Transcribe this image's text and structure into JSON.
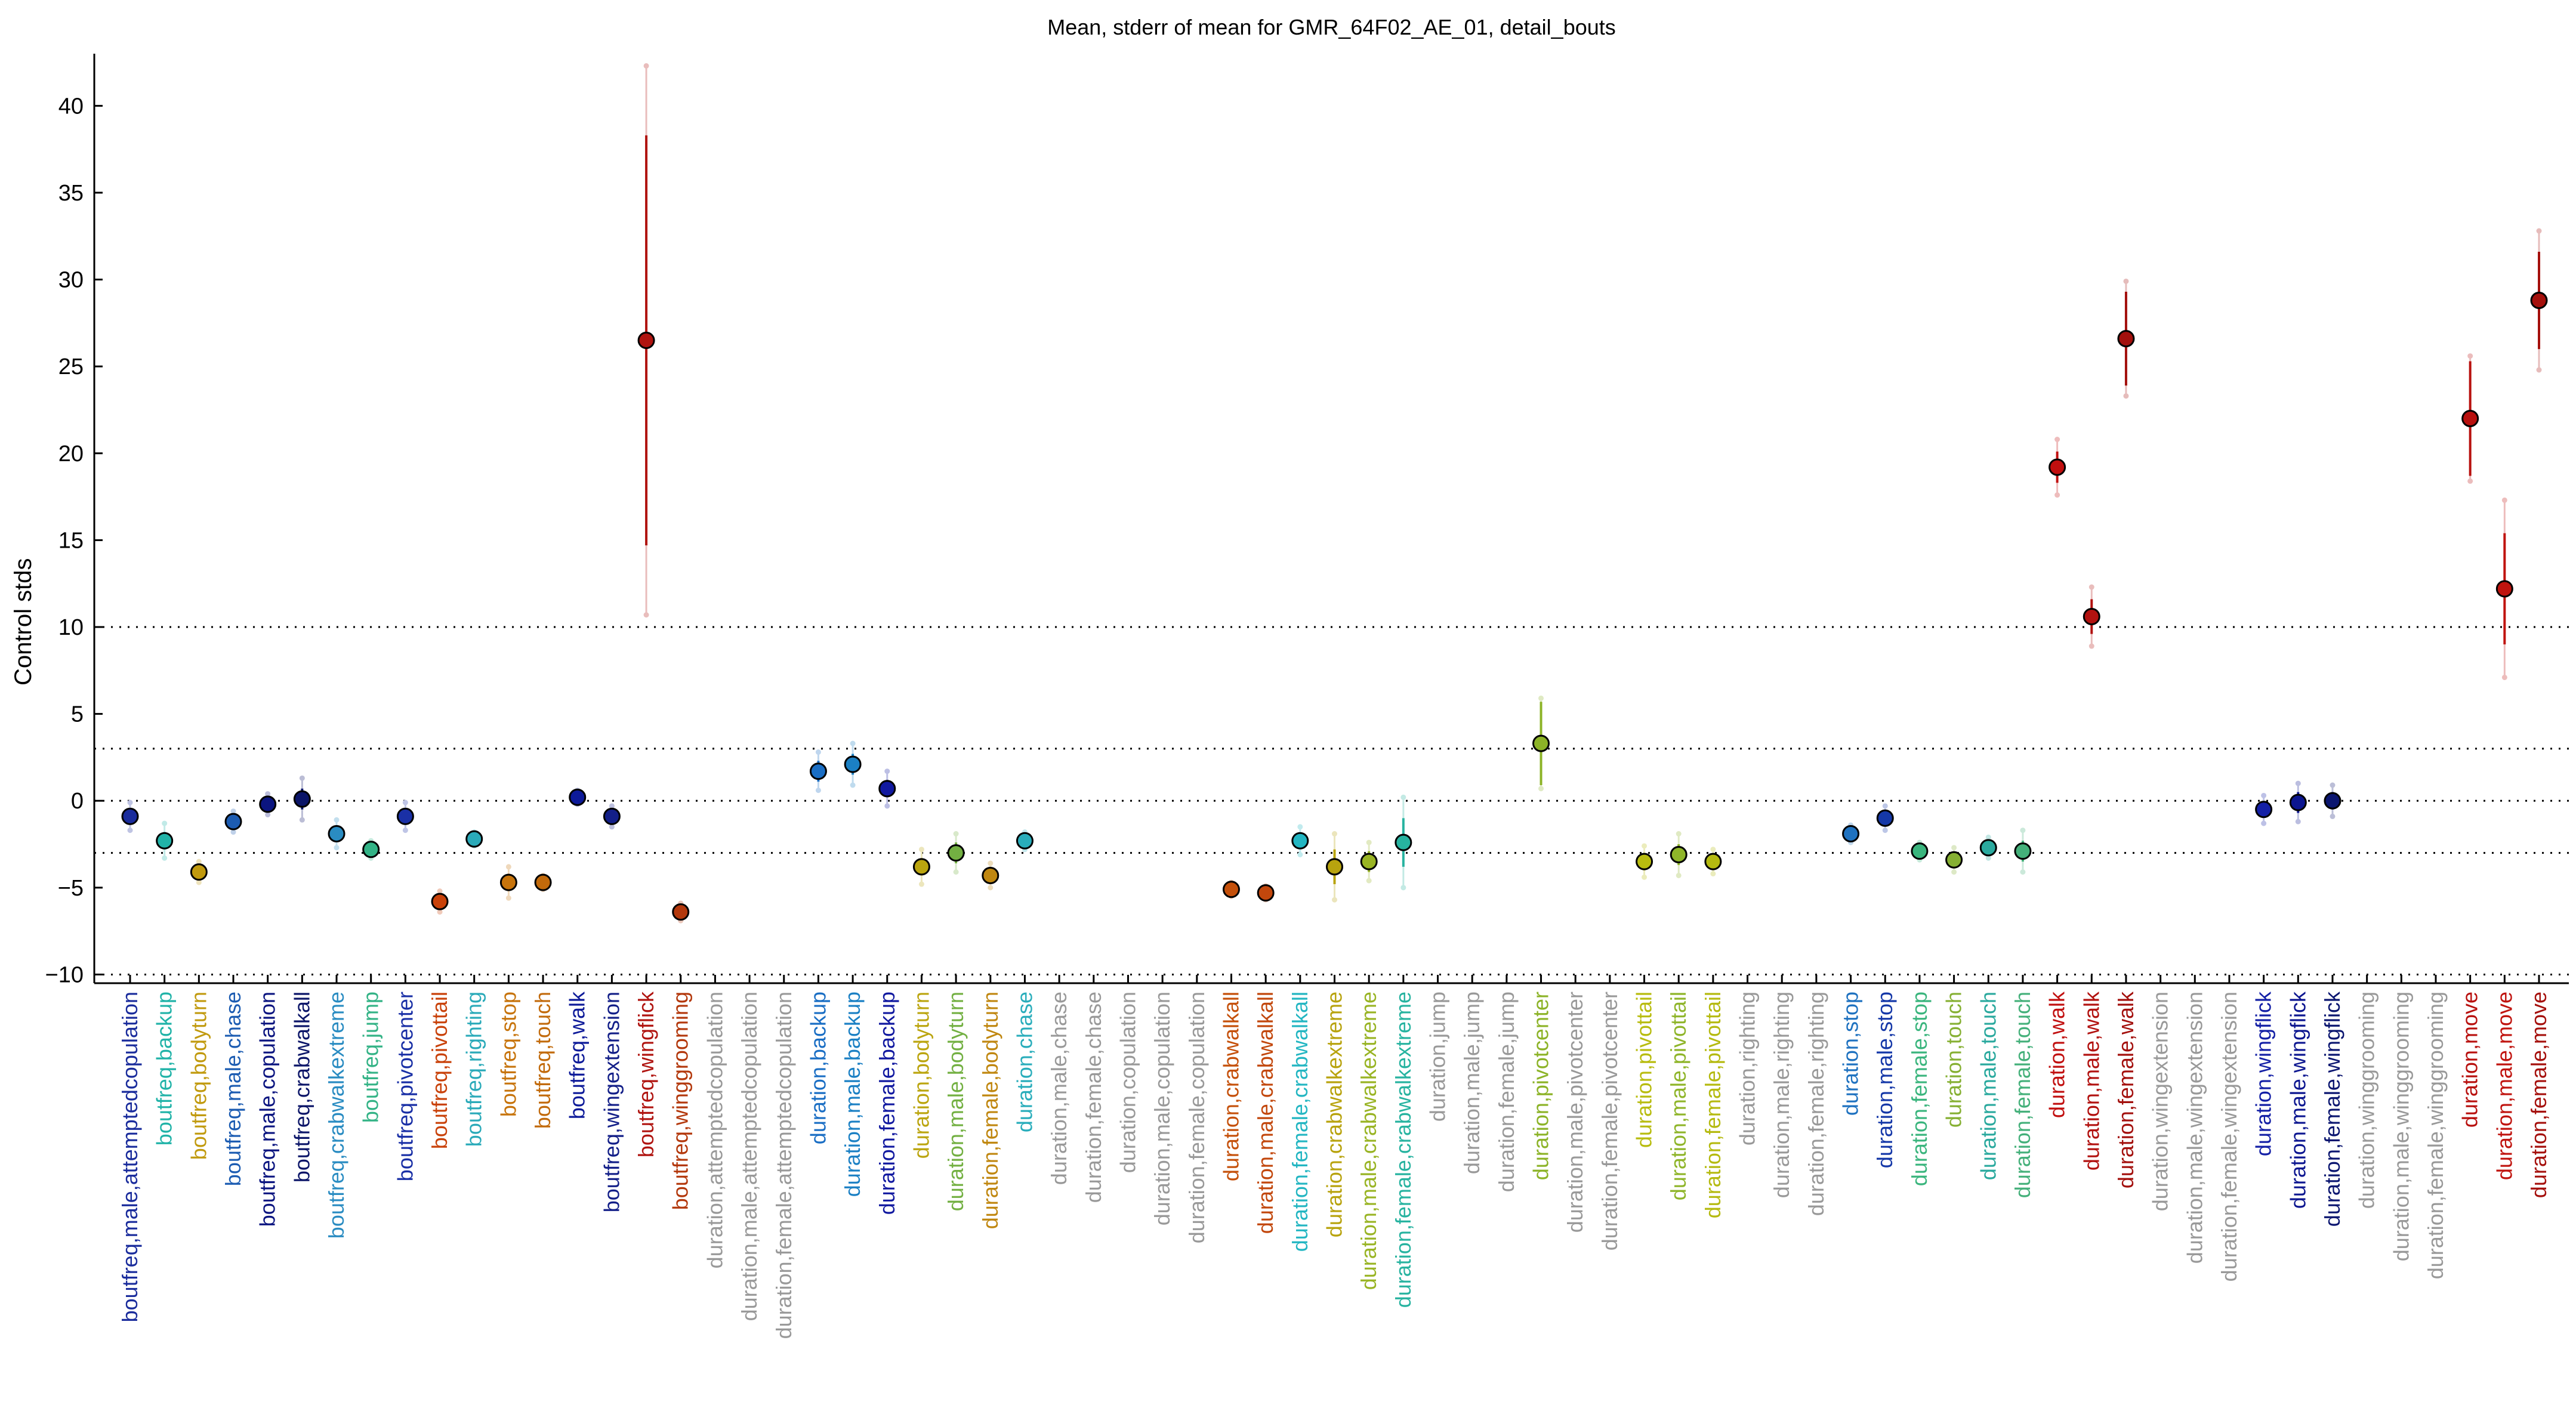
{
  "chart_data": {
    "type": "scatter",
    "title": "Mean, stderr of mean for GMR_64F02_AE_01, detail_bouts",
    "xlabel": "",
    "ylabel": "Control stds",
    "ylim": [
      -10.5,
      43
    ],
    "yticks": [
      -10,
      -5,
      0,
      5,
      10,
      15,
      20,
      25,
      30,
      35,
      40
    ],
    "reference_lines": [
      -10,
      -3,
      0,
      3,
      10
    ],
    "grid": false,
    "legend": "none",
    "points": [
      {
        "label": "boutfreq,male,attemptedcopulation",
        "y": -0.9,
        "se": 0.4,
        "ci": 0.8,
        "color": "#1a2c9c"
      },
      {
        "label": "boutfreq,backup",
        "y": -2.3,
        "se": 0.5,
        "ci": 1.0,
        "color": "#21b3a8"
      },
      {
        "label": "boutfreq,bodyturn",
        "y": -4.1,
        "se": 0.3,
        "ci": 0.6,
        "color": "#c19a0e"
      },
      {
        "label": "boutfreq,male,chase",
        "y": -1.2,
        "se": 0.3,
        "ci": 0.6,
        "color": "#1c5cb2"
      },
      {
        "label": "boutfreq,male,copulation",
        "y": -0.2,
        "se": 0.3,
        "ci": 0.6,
        "color": "#0b1580"
      },
      {
        "label": "boutfreq,crabwalkall",
        "y": 0.1,
        "se": 0.6,
        "ci": 1.2,
        "color": "#0b1568"
      },
      {
        "label": "boutfreq,crabwalkextreme",
        "y": -1.9,
        "se": 0.4,
        "ci": 0.8,
        "color": "#2a8cc2"
      },
      {
        "label": "boutfreq,jump",
        "y": -2.8,
        "se": 0.3,
        "ci": 0.5,
        "color": "#33b386"
      },
      {
        "label": "boutfreq,pivotcenter",
        "y": -0.9,
        "se": 0.4,
        "ci": 0.8,
        "color": "#1a30a6"
      },
      {
        "label": "boutfreq,pivottail",
        "y": -5.8,
        "se": 0.3,
        "ci": 0.6,
        "color": "#c9420a"
      },
      {
        "label": "boutfreq,righting",
        "y": -2.2,
        "se": 0.2,
        "ci": 0.4,
        "color": "#2aaab9"
      },
      {
        "label": "boutfreq,stop",
        "y": -4.7,
        "se": 0.5,
        "ci": 0.9,
        "color": "#c7740c"
      },
      {
        "label": "boutfreq,touch",
        "y": -4.7,
        "se": 0.2,
        "ci": 0.4,
        "color": "#c26a0b"
      },
      {
        "label": "boutfreq,walk",
        "y": 0.2,
        "se": 0.2,
        "ci": 0.4,
        "color": "#0d1a99"
      },
      {
        "label": "boutfreq,wingextension",
        "y": -0.9,
        "se": 0.3,
        "ci": 0.6,
        "color": "#131f88"
      },
      {
        "label": "boutfreq,wingflick",
        "y": 26.5,
        "se": 11.8,
        "ci": 15.8,
        "color": "#b01410"
      },
      {
        "label": "boutfreq,winggrooming",
        "y": -6.4,
        "se": 0.3,
        "ci": 0.5,
        "color": "#b3380c"
      },
      {
        "label": "duration,attemptedcopulation",
        "y": null,
        "color": "#999999"
      },
      {
        "label": "duration,male,attemptedcopulation",
        "y": null,
        "color": "#999999"
      },
      {
        "label": "duration,female,attemptedcopulation",
        "y": null,
        "color": "#999999"
      },
      {
        "label": "duration,backup",
        "y": 1.7,
        "se": 0.6,
        "ci": 1.1,
        "color": "#1a6ec4"
      },
      {
        "label": "duration,male,backup",
        "y": 2.1,
        "se": 0.6,
        "ci": 1.2,
        "color": "#1b80c4"
      },
      {
        "label": "duration,female,backup",
        "y": 0.7,
        "se": 0.5,
        "ci": 1.0,
        "color": "#1119a0"
      },
      {
        "label": "duration,bodyturn",
        "y": -3.8,
        "se": 0.5,
        "ci": 1.0,
        "color": "#bba50f"
      },
      {
        "label": "duration,male,bodyturn",
        "y": -3.0,
        "se": 0.6,
        "ci": 1.1,
        "color": "#73b042"
      },
      {
        "label": "duration,female,bodyturn",
        "y": -4.3,
        "se": 0.4,
        "ci": 0.7,
        "color": "#c08710"
      },
      {
        "label": "duration,chase",
        "y": -2.3,
        "se": 0.3,
        "ci": 0.5,
        "color": "#29adbb"
      },
      {
        "label": "duration,male,chase",
        "y": null,
        "color": "#999999"
      },
      {
        "label": "duration,female,chase",
        "y": null,
        "color": "#999999"
      },
      {
        "label": "duration,copulation",
        "y": null,
        "color": "#999999"
      },
      {
        "label": "duration,male,copulation",
        "y": null,
        "color": "#999999"
      },
      {
        "label": "duration,female,copulation",
        "y": null,
        "color": "#999999"
      },
      {
        "label": "duration,crabwalkall",
        "y": -5.1,
        "se": 0.2,
        "ci": 0.4,
        "color": "#c5500a"
      },
      {
        "label": "duration,male,crabwalkall",
        "y": -5.3,
        "se": 0.2,
        "ci": 0.4,
        "color": "#c2470c"
      },
      {
        "label": "duration,female,crabwalkall",
        "y": -2.3,
        "se": 0.4,
        "ci": 0.8,
        "color": "#23b6c2"
      },
      {
        "label": "duration,crabwalkextreme",
        "y": -3.8,
        "se": 1.0,
        "ci": 1.9,
        "color": "#b8a30e"
      },
      {
        "label": "duration,male,crabwalkextreme",
        "y": -3.5,
        "se": 0.6,
        "ci": 1.1,
        "color": "#99b424"
      },
      {
        "label": "duration,female,crabwalkextreme",
        "y": -2.4,
        "se": 1.4,
        "ci": 2.6,
        "color": "#27b3a0"
      },
      {
        "label": "duration,jump",
        "y": null,
        "color": "#999999"
      },
      {
        "label": "duration,male,jump",
        "y": null,
        "color": "#999999"
      },
      {
        "label": "duration,female,jump",
        "y": null,
        "color": "#999999"
      },
      {
        "label": "duration,pivotcenter",
        "y": 3.3,
        "se": 2.4,
        "ci": 2.6,
        "color": "#8cb327"
      },
      {
        "label": "duration,male,pivotcenter",
        "y": null,
        "color": "#999999"
      },
      {
        "label": "duration,female,pivotcenter",
        "y": null,
        "color": "#999999"
      },
      {
        "label": "duration,pivottail",
        "y": -3.5,
        "se": 0.5,
        "ci": 0.9,
        "color": "#b8bc0f"
      },
      {
        "label": "duration,male,pivottail",
        "y": -3.1,
        "se": 0.6,
        "ci": 1.2,
        "color": "#8fb52a"
      },
      {
        "label": "duration,female,pivottail",
        "y": -3.5,
        "se": 0.4,
        "ci": 0.7,
        "color": "#b5ba10"
      },
      {
        "label": "duration,righting",
        "y": null,
        "color": "#999999"
      },
      {
        "label": "duration,male,righting",
        "y": null,
        "color": "#999999"
      },
      {
        "label": "duration,female,righting",
        "y": null,
        "color": "#999999"
      },
      {
        "label": "duration,stop",
        "y": -1.9,
        "se": 0.3,
        "ci": 0.5,
        "color": "#1f72c0"
      },
      {
        "label": "duration,male,stop",
        "y": -1.0,
        "se": 0.4,
        "ci": 0.7,
        "color": "#1538a8"
      },
      {
        "label": "duration,female,stop",
        "y": -2.9,
        "se": 0.3,
        "ci": 0.5,
        "color": "#3ab57d"
      },
      {
        "label": "duration,touch",
        "y": -3.4,
        "se": 0.4,
        "ci": 0.7,
        "color": "#86b033"
      },
      {
        "label": "duration,male,touch",
        "y": -2.7,
        "se": 0.3,
        "ci": 0.6,
        "color": "#2aa99e"
      },
      {
        "label": "duration,female,touch",
        "y": -2.9,
        "se": 0.6,
        "ci": 1.2,
        "color": "#44b07a"
      },
      {
        "label": "duration,walk",
        "y": 19.2,
        "se": 0.9,
        "ci": 1.6,
        "color": "#c10f0f"
      },
      {
        "label": "duration,male,walk",
        "y": 10.6,
        "se": 1.0,
        "ci": 1.7,
        "color": "#b21210"
      },
      {
        "label": "duration,female,walk",
        "y": 26.6,
        "se": 2.7,
        "ci": 3.3,
        "color": "#a3100d"
      },
      {
        "label": "duration,wingextension",
        "y": null,
        "color": "#999999"
      },
      {
        "label": "duration,male,wingextension",
        "y": null,
        "color": "#999999"
      },
      {
        "label": "duration,female,wingextension",
        "y": null,
        "color": "#999999"
      },
      {
        "label": "duration,wingflick",
        "y": -0.5,
        "se": 0.4,
        "ci": 0.8,
        "color": "#1420a6"
      },
      {
        "label": "duration,male,wingflick",
        "y": -0.1,
        "se": 0.6,
        "ci": 1.1,
        "color": "#0c1690"
      },
      {
        "label": "duration,female,wingflick",
        "y": 0.0,
        "se": 0.5,
        "ci": 0.9,
        "color": "#0b1670"
      },
      {
        "label": "duration,winggrooming",
        "y": null,
        "color": "#999999"
      },
      {
        "label": "duration,male,winggrooming",
        "y": null,
        "color": "#999999"
      },
      {
        "label": "duration,female,winggrooming",
        "y": null,
        "color": "#999999"
      },
      {
        "label": "duration,move",
        "y": 22.0,
        "se": 3.3,
        "ci": 3.6,
        "color": "#b8100e"
      },
      {
        "label": "duration,male,move",
        "y": 12.2,
        "se": 3.2,
        "ci": 5.1,
        "color": "#c0140f"
      },
      {
        "label": "duration,female,move",
        "y": 28.8,
        "se": 2.8,
        "ci": 4.0,
        "color": "#a5100c"
      }
    ]
  }
}
